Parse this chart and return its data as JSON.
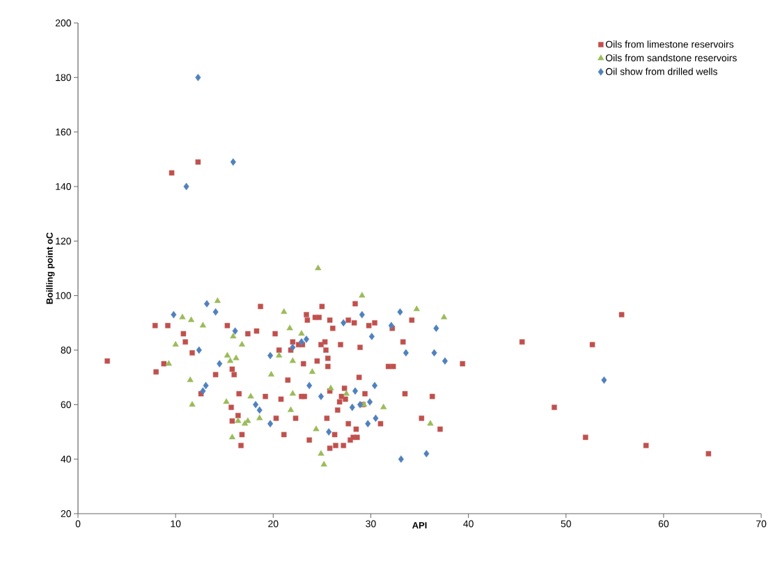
{
  "chart_data": {
    "type": "scatter",
    "xlabel": "API",
    "ylabel": "Boilling point oC",
    "xlim": [
      0,
      70
    ],
    "ylim": [
      20,
      200
    ],
    "xticks": [
      0,
      10,
      20,
      30,
      40,
      50,
      60,
      70
    ],
    "yticks": [
      20,
      40,
      60,
      80,
      100,
      120,
      140,
      160,
      180,
      200
    ],
    "grid": false,
    "legend": "top right",
    "series": [
      {
        "name": "Oils from limestone reservoirs",
        "color": "#c0504d",
        "marker": "square",
        "x": [
          3.0,
          7.9,
          8.0,
          8.8,
          9.2,
          9.6,
          12.3,
          10.8,
          11.0,
          11.7,
          12.6,
          14.1,
          15.3,
          15.7,
          15.8,
          16.0,
          15.8,
          16.5,
          16.7,
          16.8,
          16.4,
          17.4,
          18.3,
          18.7,
          19.2,
          20.2,
          20.3,
          20.6,
          20.8,
          21.1,
          21.5,
          21.8,
          22.0,
          22.3,
          22.6,
          22.9,
          23.0,
          23.2,
          23.4,
          23.5,
          23.1,
          23.7,
          24.3,
          24.5,
          24.7,
          24.9,
          25.0,
          25.3,
          25.4,
          25.5,
          25.6,
          25.6,
          25.8,
          25.8,
          25.8,
          26.1,
          26.3,
          26.4,
          26.6,
          26.8,
          27.0,
          26.9,
          27.2,
          27.3,
          27.4,
          27.7,
          27.7,
          27.9,
          28.2,
          28.4,
          28.3,
          28.5,
          28.6,
          28.8,
          28.9,
          29.2,
          29.4,
          29.8,
          30.4,
          31.0,
          31.8,
          34.2,
          33.3,
          32.2,
          32.3,
          33.5,
          36.3,
          35.2,
          37.1,
          39.4,
          45.5,
          55.7,
          52.7,
          48.8,
          52.0,
          58.2,
          64.6
        ],
        "values": [
          76,
          89,
          72,
          75,
          89,
          145,
          149,
          86,
          83,
          79,
          64,
          71,
          89,
          59,
          73,
          71,
          54,
          64,
          45,
          49,
          56,
          86,
          87,
          96,
          63,
          86,
          55,
          80,
          62,
          49,
          69,
          80,
          83,
          55,
          82,
          63,
          82,
          63,
          93,
          91,
          75,
          47,
          92,
          76,
          92,
          82,
          96,
          83,
          80,
          55,
          74,
          77,
          65,
          44,
          91,
          88,
          49,
          45,
          58,
          61,
          63,
          82,
          45,
          66,
          62,
          91,
          53,
          47,
          48,
          97,
          90,
          51,
          48,
          70,
          81,
          60,
          64,
          89,
          90,
          53,
          74,
          91,
          83,
          88,
          74,
          64,
          63,
          55,
          51,
          75,
          83,
          93,
          82,
          59,
          48,
          45,
          42
        ]
      },
      {
        "name": "Oils from sandstone reservoirs",
        "color": "#9bbb59",
        "marker": "triangle",
        "x": [
          9.3,
          10.0,
          10.7,
          11.6,
          11.5,
          11.7,
          12.8,
          14.3,
          15.2,
          15.3,
          15.6,
          15.9,
          15.8,
          16.2,
          16.4,
          16.8,
          17.1,
          17.4,
          17.7,
          18.6,
          19.8,
          20.6,
          21.1,
          21.7,
          21.8,
          22.0,
          22.0,
          22.9,
          24.0,
          24.4,
          24.6,
          24.9,
          25.2,
          25.9,
          27.5,
          29.1,
          29.3,
          31.3,
          34.7,
          37.5,
          36.1
        ],
        "values": [
          75,
          82,
          92,
          91,
          69,
          60,
          89,
          98,
          61,
          78,
          76,
          85,
          48,
          77,
          54,
          82,
          53,
          54,
          63,
          55,
          71,
          78,
          94,
          88,
          58,
          76,
          64,
          86,
          72,
          51,
          110,
          42,
          38,
          66,
          64,
          100,
          60,
          59,
          95,
          92,
          53
        ]
      },
      {
        "name": "Oil show from drilled wells",
        "color": "#4f81bd",
        "marker": "diamond",
        "x": [
          9.8,
          11.1,
          12.3,
          15.9,
          12.4,
          12.8,
          13.1,
          13.2,
          14.1,
          14.5,
          16.1,
          18.2,
          18.6,
          19.7,
          19.7,
          22.0,
          22.9,
          23.4,
          23.7,
          24.9,
          25.7,
          27.2,
          28.1,
          28.4,
          28.9,
          29.1,
          29.9,
          29.7,
          30.1,
          30.4,
          30.5,
          32.1,
          33.0,
          33.6,
          33.1,
          35.7,
          36.7,
          36.5,
          37.6,
          53.9
        ],
        "values": [
          93,
          140,
          180,
          149,
          80,
          65,
          67,
          97,
          94,
          75,
          87,
          60,
          58,
          78,
          53,
          81,
          83,
          84,
          67,
          63,
          50,
          90,
          59,
          65,
          60,
          93,
          61,
          53,
          85,
          67,
          55,
          89,
          94,
          79,
          40,
          42,
          88,
          79,
          76,
          69
        ]
      }
    ]
  }
}
